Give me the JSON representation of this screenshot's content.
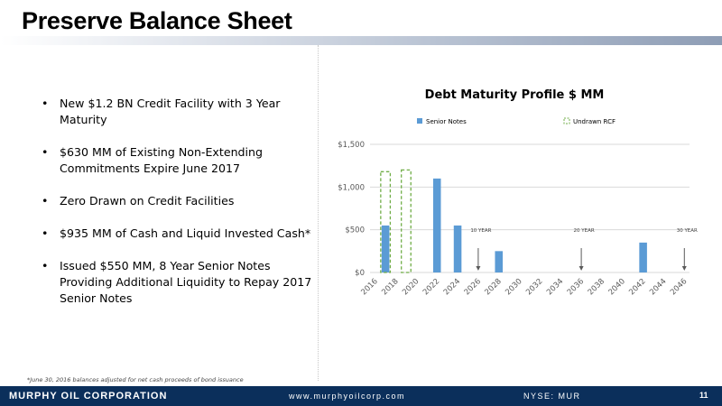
{
  "slide": {
    "title": "Preserve Balance Sheet",
    "page_number": "11",
    "footnote": "*June 30, 2016 balances adjusted for net cash proceeds of bond issuance"
  },
  "bullets": [
    "New $1.2 BN Credit Facility with 3 Year Maturity",
    "$630 MM of Existing Non-Extending Commitments Expire June 2017",
    "Zero Drawn on Credit Facilities",
    "$935 MM of Cash and Liquid Invested Cash*",
    "Issued $550 MM, 8 Year Senior Notes Providing Additional Liquidity to Repay 2017 Senior Notes"
  ],
  "footer": {
    "company": "MURPHY OIL CORPORATION",
    "url": "www.murphyoilcorp.com",
    "ticker": "NYSE: MUR"
  },
  "colors": {
    "bar": "#5b9bd5",
    "rcf_outline": "#70ad47",
    "footer_bg": "#0b2f5b"
  },
  "chart_data": {
    "type": "bar",
    "title": "Debt Maturity Profile  $ MM",
    "xlabel": "",
    "ylabel": "",
    "ylim": [
      0,
      1500
    ],
    "yticks": [
      "$0",
      "$500",
      "$1,000",
      "$1,500"
    ],
    "ytick_values": [
      0,
      500,
      1000,
      1500
    ],
    "grid": true,
    "legend": "top",
    "categories": [
      "2016",
      "2017",
      "2018",
      "2019",
      "2020",
      "2021",
      "2022",
      "2023",
      "2024",
      "2025",
      "2026",
      "2027",
      "2028",
      "2029",
      "2030",
      "2031",
      "2032",
      "2033",
      "2034",
      "2035",
      "2036",
      "2037",
      "2038",
      "2039",
      "2040",
      "2041",
      "2042",
      "2043",
      "2044",
      "2045",
      "2046"
    ],
    "xtick_labels": [
      "2016",
      "2018",
      "2020",
      "2022",
      "2024",
      "2026",
      "2028",
      "2030",
      "2032",
      "2034",
      "2036",
      "2038",
      "2040",
      "2042",
      "2044",
      "2046"
    ],
    "series": [
      {
        "name": "Senior Notes",
        "values": [
          0,
          550,
          0,
          0,
          0,
          0,
          1100,
          0,
          550,
          0,
          0,
          0,
          250,
          0,
          0,
          0,
          0,
          0,
          0,
          0,
          0,
          0,
          0,
          0,
          0,
          0,
          350,
          0,
          0,
          0,
          0
        ]
      },
      {
        "name": "Undrawn RCF",
        "style": "dashed-outline",
        "values": [
          0,
          630,
          0,
          1200,
          0,
          0,
          0,
          0,
          0,
          0,
          0,
          0,
          0,
          0,
          0,
          0,
          0,
          0,
          0,
          0,
          0,
          0,
          0,
          0,
          0,
          0,
          0,
          0,
          0,
          0,
          0
        ]
      }
    ],
    "annotations": [
      {
        "text": "10 YEAR",
        "x": "2026"
      },
      {
        "text": "20 YEAR",
        "x": "2036"
      },
      {
        "text": "30 YEAR",
        "x": "2046"
      }
    ]
  }
}
